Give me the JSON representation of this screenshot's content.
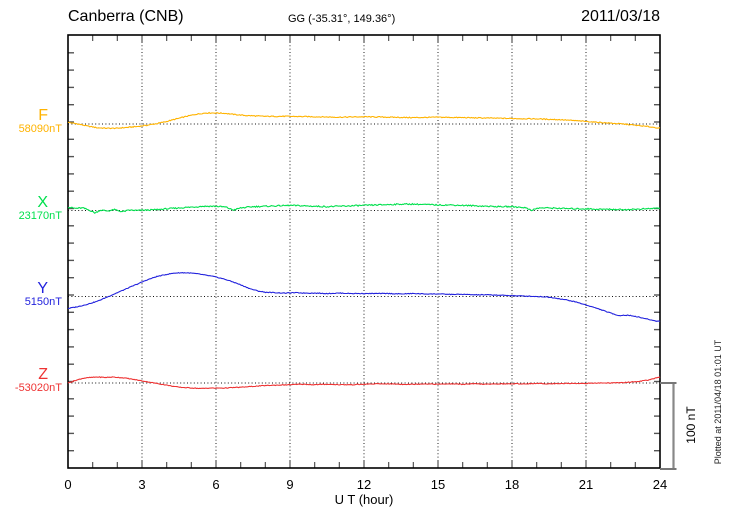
{
  "header": {
    "station": "Canberra (CNB)",
    "coords": "GG (-35.31°, 149.36°)",
    "date": "2011/03/18"
  },
  "scalebar": {
    "label": "100 nT",
    "nT": 100
  },
  "footer_note": "Plotted at 2011/04/18 01:01 UT",
  "chart_data": {
    "type": "line",
    "title": "Canberra (CNB) magnetogram 2011/03/18",
    "xlabel": "U T (hour)",
    "x_range": [
      0,
      24
    ],
    "x_ticks": [
      "0",
      "3",
      "6",
      "9",
      "12",
      "15",
      "18",
      "21",
      "24"
    ],
    "grid": "dotted vertical every 3 h, dotted horizontal baseline per trace",
    "y_scale_note": "vertical scale bar = 100 nT",
    "series": [
      {
        "name": "F",
        "baseline_label": "58090nT",
        "baseline_nT": 58090,
        "color": "#ffb300",
        "points": [
          [
            0,
            2
          ],
          [
            0.4,
            0
          ],
          [
            0.8,
            -2.5
          ],
          [
            1.2,
            -4.5
          ],
          [
            1.6,
            -5
          ],
          [
            2,
            -5
          ],
          [
            2.4,
            -4
          ],
          [
            2.8,
            -3
          ],
          [
            3.2,
            -1.5
          ],
          [
            3.6,
            0.5
          ],
          [
            4,
            3
          ],
          [
            4.4,
            6
          ],
          [
            4.8,
            9
          ],
          [
            5.2,
            11.5
          ],
          [
            5.6,
            13
          ],
          [
            6,
            13
          ],
          [
            6.4,
            12.5
          ],
          [
            6.8,
            11
          ],
          [
            7.2,
            10
          ],
          [
            7.6,
            9.5
          ],
          [
            8,
            9
          ],
          [
            9,
            9
          ],
          [
            10,
            8.5
          ],
          [
            11,
            8
          ],
          [
            12,
            8.5
          ],
          [
            13,
            8
          ],
          [
            14,
            7.5
          ],
          [
            15,
            8
          ],
          [
            16,
            7.5
          ],
          [
            17,
            7
          ],
          [
            18,
            6.5
          ],
          [
            19,
            6
          ],
          [
            20,
            5
          ],
          [
            20.5,
            4
          ],
          [
            21,
            3
          ],
          [
            21.5,
            2
          ],
          [
            22,
            1
          ],
          [
            22.5,
            0
          ],
          [
            23,
            -1.5
          ],
          [
            23.5,
            -3
          ],
          [
            24,
            -5
          ]
        ]
      },
      {
        "name": "X",
        "baseline_label": "23170nT",
        "baseline_nT": 23170,
        "color": "#00e04d",
        "points": [
          [
            0,
            4
          ],
          [
            0.3,
            2.5
          ],
          [
            0.6,
            3
          ],
          [
            0.9,
            0
          ],
          [
            1.1,
            -3
          ],
          [
            1.3,
            0.5
          ],
          [
            1.6,
            -0.5
          ],
          [
            1.9,
            1
          ],
          [
            2.2,
            -1.5
          ],
          [
            2.5,
            0.5
          ],
          [
            2.8,
            0
          ],
          [
            3.2,
            0.5
          ],
          [
            3.6,
            1
          ],
          [
            4,
            2
          ],
          [
            4.5,
            3
          ],
          [
            5,
            4
          ],
          [
            5.5,
            5
          ],
          [
            6,
            5
          ],
          [
            6.4,
            4
          ],
          [
            6.7,
            0.5
          ],
          [
            7,
            3
          ],
          [
            7.5,
            4.5
          ],
          [
            8,
            5
          ],
          [
            8.5,
            5.5
          ],
          [
            9,
            6
          ],
          [
            9.5,
            5.5
          ],
          [
            10,
            5
          ],
          [
            10.5,
            4.5
          ],
          [
            11,
            5
          ],
          [
            11.5,
            5.5
          ],
          [
            12,
            6
          ],
          [
            12.5,
            6.5
          ],
          [
            13,
            7
          ],
          [
            13.5,
            7.5
          ],
          [
            14,
            7.5
          ],
          [
            14.5,
            7
          ],
          [
            15,
            6.5
          ],
          [
            15.5,
            6.5
          ],
          [
            16,
            6
          ],
          [
            16.5,
            5.5
          ],
          [
            17,
            5
          ],
          [
            17.5,
            4.5
          ],
          [
            18,
            4.5
          ],
          [
            18.5,
            3.5
          ],
          [
            18.8,
            0.5
          ],
          [
            19.1,
            3
          ],
          [
            19.5,
            3
          ],
          [
            20,
            2.5
          ],
          [
            20.5,
            2
          ],
          [
            21,
            2
          ],
          [
            21.5,
            1.5
          ],
          [
            22,
            1.5
          ],
          [
            22.5,
            1
          ],
          [
            23,
            1.5
          ],
          [
            23.5,
            2
          ],
          [
            24,
            3
          ]
        ]
      },
      {
        "name": "Y",
        "baseline_label": "5150nT",
        "baseline_nT": 5150,
        "color": "#2323dd",
        "points": [
          [
            0,
            -14
          ],
          [
            0.4,
            -12
          ],
          [
            0.8,
            -9
          ],
          [
            1.2,
            -5.5
          ],
          [
            1.6,
            -0.5
          ],
          [
            2,
            4.5
          ],
          [
            2.4,
            9.5
          ],
          [
            2.8,
            14.5
          ],
          [
            3.2,
            19.5
          ],
          [
            3.6,
            23.5
          ],
          [
            4,
            26
          ],
          [
            4.3,
            27.5
          ],
          [
            4.7,
            28
          ],
          [
            5,
            27.5
          ],
          [
            5.3,
            26.5
          ],
          [
            5.6,
            25
          ],
          [
            5.9,
            23.5
          ],
          [
            6.2,
            21.5
          ],
          [
            6.5,
            19
          ],
          [
            6.8,
            16
          ],
          [
            7.1,
            12.5
          ],
          [
            7.4,
            9
          ],
          [
            7.7,
            6.5
          ],
          [
            8,
            5
          ],
          [
            8.4,
            4.5
          ],
          [
            8.8,
            4
          ],
          [
            9.2,
            4.5
          ],
          [
            9.6,
            4
          ],
          [
            10,
            4
          ],
          [
            10.5,
            3.5
          ],
          [
            11,
            4
          ],
          [
            11.5,
            3.5
          ],
          [
            12,
            3.5
          ],
          [
            12.5,
            3.5
          ],
          [
            13,
            3.5
          ],
          [
            13.5,
            3
          ],
          [
            14,
            3.5
          ],
          [
            14.5,
            3
          ],
          [
            15,
            3
          ],
          [
            15.5,
            2.5
          ],
          [
            16,
            2.5
          ],
          [
            16.5,
            2
          ],
          [
            17,
            2
          ],
          [
            17.5,
            1.5
          ],
          [
            18,
            1
          ],
          [
            18.5,
            0.5
          ],
          [
            19,
            0
          ],
          [
            19.4,
            -0.5
          ],
          [
            19.8,
            -2
          ],
          [
            20.2,
            -4
          ],
          [
            20.6,
            -6.5
          ],
          [
            21,
            -10
          ],
          [
            21.4,
            -13.5
          ],
          [
            21.8,
            -17.5
          ],
          [
            22.1,
            -20.5
          ],
          [
            22.35,
            -22.5
          ],
          [
            22.6,
            -22
          ],
          [
            22.85,
            -22.5
          ],
          [
            23.1,
            -24
          ],
          [
            23.4,
            -26
          ],
          [
            23.7,
            -28
          ],
          [
            23.85,
            -29
          ],
          [
            24,
            -29
          ]
        ]
      },
      {
        "name": "Z",
        "baseline_label": "-53020nT",
        "baseline_nT": -53020,
        "color": "#ee3333",
        "points": [
          [
            0,
            0
          ],
          [
            0.3,
            3
          ],
          [
            0.6,
            5.5
          ],
          [
            0.9,
            6.5
          ],
          [
            1.2,
            7
          ],
          [
            1.5,
            6.5
          ],
          [
            1.8,
            7
          ],
          [
            2.1,
            6.5
          ],
          [
            2.4,
            5.5
          ],
          [
            2.7,
            4
          ],
          [
            3,
            2.5
          ],
          [
            3.3,
            1
          ],
          [
            3.6,
            -0.5
          ],
          [
            3.9,
            -2
          ],
          [
            4.2,
            -3.5
          ],
          [
            4.5,
            -5
          ],
          [
            4.8,
            -5.5
          ],
          [
            5.1,
            -6
          ],
          [
            5.4,
            -6.5
          ],
          [
            5.7,
            -6
          ],
          [
            6,
            -6
          ],
          [
            6.3,
            -6
          ],
          [
            6.6,
            -5.5
          ],
          [
            7,
            -5
          ],
          [
            7.5,
            -4
          ],
          [
            8,
            -3
          ],
          [
            8.5,
            -2.5
          ],
          [
            9,
            -2
          ],
          [
            9.5,
            -1.5
          ],
          [
            10,
            -2
          ],
          [
            10.5,
            -1.5
          ],
          [
            11,
            -2
          ],
          [
            11.5,
            -2
          ],
          [
            12,
            -1.5
          ],
          [
            12.5,
            -1
          ],
          [
            13,
            -1
          ],
          [
            13.5,
            -1.5
          ],
          [
            14,
            -1.5
          ],
          [
            14.5,
            -1
          ],
          [
            15,
            -1.5
          ],
          [
            15.5,
            -1
          ],
          [
            16,
            -1.5
          ],
          [
            16.5,
            -1
          ],
          [
            17,
            -1.5
          ],
          [
            17.5,
            -1
          ],
          [
            18,
            -1
          ],
          [
            18.5,
            -1
          ],
          [
            19,
            -0.5
          ],
          [
            19.5,
            -1
          ],
          [
            20,
            -0.5
          ],
          [
            20.5,
            -0.5
          ],
          [
            21,
            -0.5
          ],
          [
            21.5,
            0
          ],
          [
            22,
            0
          ],
          [
            22.5,
            0.5
          ],
          [
            23,
            1.5
          ],
          [
            23.3,
            2.5
          ],
          [
            23.6,
            4
          ],
          [
            23.8,
            5.5
          ],
          [
            24,
            7
          ]
        ]
      }
    ]
  }
}
